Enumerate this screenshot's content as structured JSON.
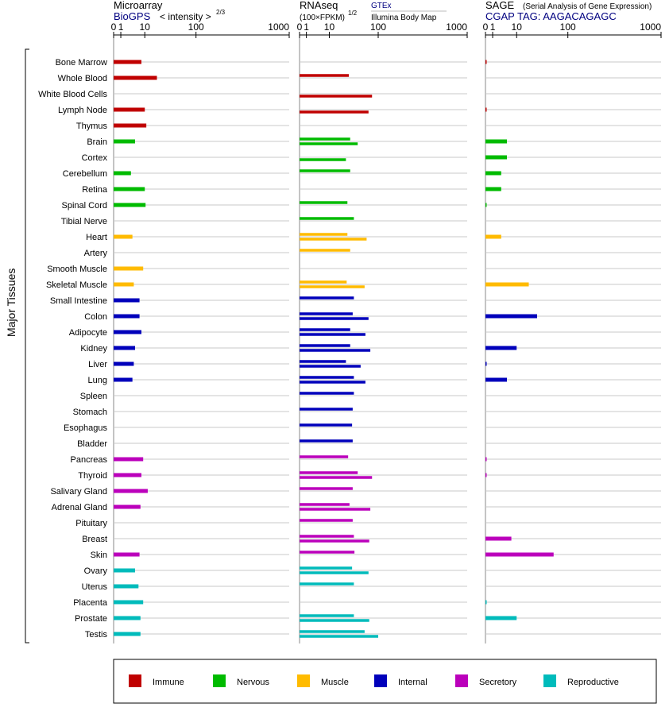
{
  "panels": {
    "microarray": {
      "title": "Microarray",
      "source": "BioGPS",
      "scale_label": "< intensity >",
      "scale_exp": "2/3",
      "ticks": [
        "0",
        "1",
        "10",
        "100",
        "1000"
      ],
      "tick_values": [
        0,
        1,
        10,
        100,
        1000
      ]
    },
    "rnaseq": {
      "title": "RNAseq",
      "scale_label": "(100×FPKM)",
      "scale_exp": "1/2",
      "source1": "GTEx",
      "source2": "Illumina Body Map",
      "ticks": [
        "0",
        "1",
        "10",
        "100",
        "1000"
      ],
      "tick_values": [
        0,
        1,
        10,
        100,
        1000
      ]
    },
    "sage": {
      "title": "SAGE",
      "subtitle": "(Serial Analysis of Gene Expression)",
      "source": "CGAP TAG: AAGACAGAGC",
      "ticks": [
        "0",
        "1",
        "10",
        "100",
        "1000"
      ],
      "tick_values": [
        0,
        1,
        10,
        100,
        1000
      ]
    }
  },
  "group_label": "Major Tissues",
  "colors": {
    "immune": "#c00000",
    "nervous": "#00bb00",
    "muscle": "#ffbb00",
    "internal": "#0000bb",
    "secretory": "#bb00bb",
    "reproductive": "#00bbbb",
    "title_blue": "#000080"
  },
  "legend": [
    {
      "key": "immune",
      "label": "Immune"
    },
    {
      "key": "nervous",
      "label": "Nervous"
    },
    {
      "key": "muscle",
      "label": "Muscle"
    },
    {
      "key": "internal",
      "label": "Internal"
    },
    {
      "key": "secretory",
      "label": "Secretory"
    },
    {
      "key": "reproductive",
      "label": "Reproductive"
    }
  ],
  "chart_data": {
    "type": "bar",
    "categories": [
      "Bone Marrow",
      "Whole Blood",
      "White Blood Cells",
      "Lymph Node",
      "Thymus",
      "Brain",
      "Cortex",
      "Cerebellum",
      "Retina",
      "Spinal Cord",
      "Tibial Nerve",
      "Heart",
      "Artery",
      "Smooth Muscle",
      "Skeletal Muscle",
      "Small Intestine",
      "Colon",
      "Adipocyte",
      "Kidney",
      "Liver",
      "Lung",
      "Spleen",
      "Stomach",
      "Esophagus",
      "Bladder",
      "Pancreas",
      "Thyroid",
      "Salivary Gland",
      "Adrenal Gland",
      "Pituitary",
      "Breast",
      "Skin",
      "Ovary",
      "Uterus",
      "Placenta",
      "Prostate",
      "Testis"
    ],
    "category_groups": [
      "immune",
      "immune",
      "immune",
      "immune",
      "immune",
      "nervous",
      "nervous",
      "nervous",
      "nervous",
      "nervous",
      "nervous",
      "muscle",
      "muscle",
      "muscle",
      "muscle",
      "internal",
      "internal",
      "internal",
      "internal",
      "internal",
      "internal",
      "internal",
      "internal",
      "internal",
      "internal",
      "secretory",
      "secretory",
      "secretory",
      "secretory",
      "secretory",
      "secretory",
      "secretory",
      "reproductive",
      "reproductive",
      "reproductive",
      "reproductive",
      "reproductive"
    ],
    "series": [
      {
        "name": "BioGPS",
        "values": [
          8,
          20,
          null,
          10,
          11,
          5,
          null,
          3.5,
          10,
          10.5,
          null,
          4,
          null,
          9,
          4.5,
          7,
          7,
          8,
          5,
          4.5,
          4,
          null,
          null,
          null,
          null,
          9,
          8,
          12,
          7.5,
          null,
          null,
          7,
          5,
          6.5,
          9,
          7.5,
          7.5
        ]
      },
      {
        "name": "GTEx",
        "values": [
          null,
          30,
          null,
          null,
          null,
          32,
          null,
          32,
          null,
          28,
          38,
          28,
          32,
          null,
          27,
          38,
          36,
          32,
          32,
          26,
          38,
          38,
          36,
          35,
          36,
          29,
          45,
          36,
          31,
          36,
          38,
          39,
          35,
          38,
          null,
          38,
          60
        ]
      },
      {
        "name": "Illumina Body Map",
        "values": [
          null,
          null,
          80,
          70,
          null,
          45,
          26,
          null,
          null,
          null,
          null,
          65,
          null,
          null,
          60,
          null,
          70,
          62,
          75,
          51,
          62,
          null,
          null,
          null,
          null,
          null,
          80,
          null,
          75,
          null,
          72,
          null,
          70,
          null,
          null,
          72,
          100
        ]
      },
      {
        "name": "CGAP TAG: AAGACAGAGC",
        "values": [
          0.1,
          null,
          null,
          0.1,
          null,
          5,
          5,
          3,
          3,
          0.05,
          null,
          3,
          null,
          null,
          20,
          null,
          30,
          null,
          10,
          0.1,
          5,
          null,
          null,
          null,
          null,
          0.05,
          0.05,
          null,
          null,
          null,
          7,
          60,
          null,
          null,
          0.05,
          10,
          null
        ]
      }
    ],
    "xlim": [
      0,
      1000
    ],
    "x_ticks": [
      0,
      1,
      10,
      100,
      1000
    ],
    "grid": true
  }
}
